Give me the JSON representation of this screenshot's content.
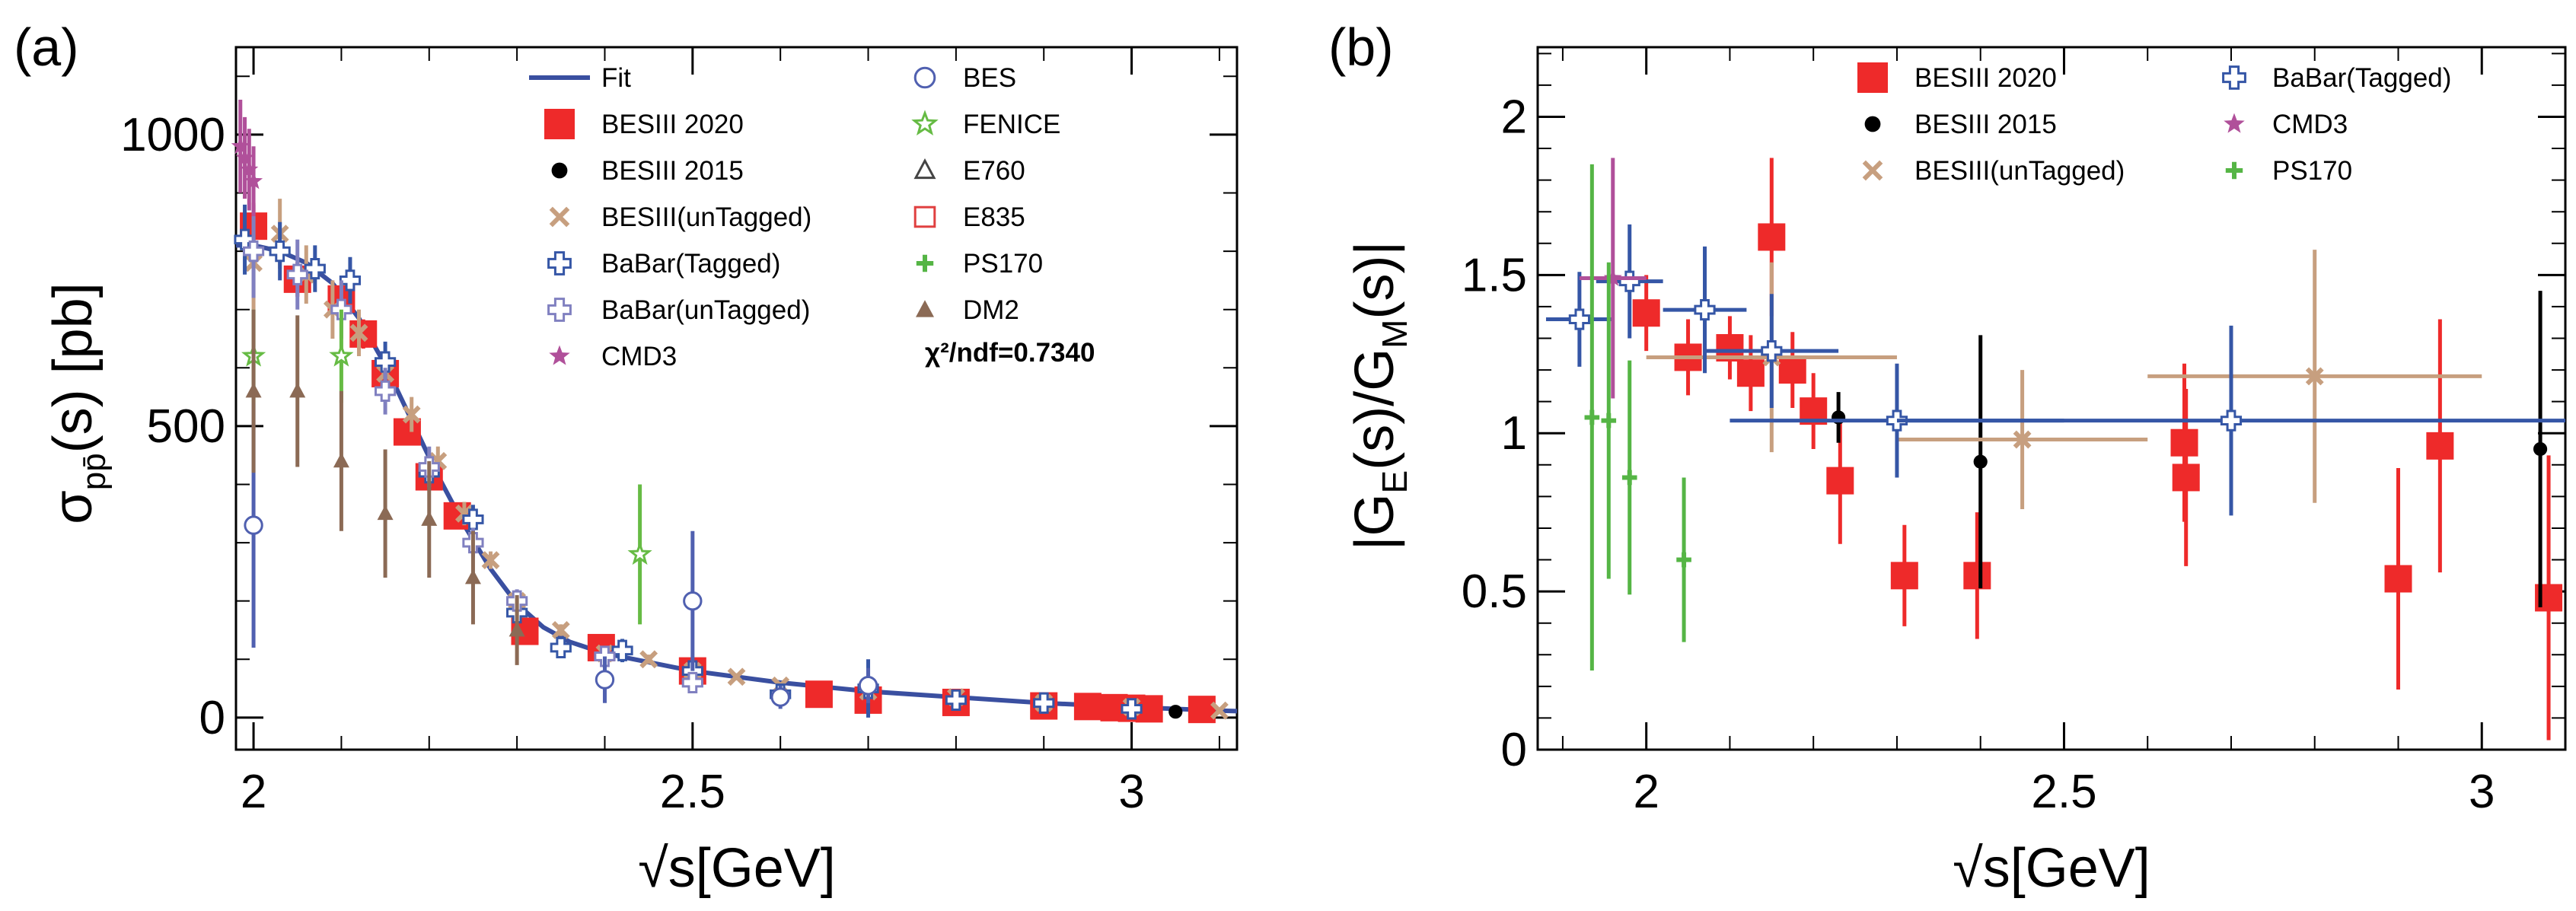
{
  "figure": {
    "panel_a_label": "(a)",
    "panel_b_label": "(b)",
    "colors": {
      "fit": "#3a4fa0",
      "besiii2020": "#ee2a2a",
      "besiii2015": "#000000",
      "besiii_untagged": "#c79f7f",
      "babar_tagged": "#3556a6",
      "babar_untagged": "#8080c0",
      "cmd3": "#b0509a",
      "bes": "#5060b0",
      "fenice": "#66bb44",
      "e760": "#444444",
      "e835": "#e04040",
      "ps170": "#55b545",
      "dm2": "#8b6a55"
    }
  },
  "chart_data": [
    {
      "id": "a",
      "type": "scatter",
      "title": "",
      "xlabel_prefix": "√",
      "xlabel": "s[GeV]",
      "ylabel_sigma": "σ",
      "ylabel_sub": "pp̄",
      "ylabel_rest": "(s) [pb]",
      "xlim": [
        1.98,
        3.12
      ],
      "ylim": [
        -55,
        1150
      ],
      "xticks": [
        2,
        2.5,
        3
      ],
      "xtick_labels": [
        "2",
        "2.5",
        "3"
      ],
      "yticks": [
        0,
        500,
        1000
      ],
      "ytick_labels": [
        "0",
        "500",
        "1000"
      ],
      "legend": {
        "placement": "top",
        "col1": [
          {
            "key": "fit",
            "label": "Fit",
            "marker": "line"
          },
          {
            "key": "besiii2020",
            "label": "BESIII 2020",
            "marker": "square"
          },
          {
            "key": "besiii2015",
            "label": "BESIII 2015",
            "marker": "circle"
          },
          {
            "key": "besiii_untagged",
            "label": "BESIII(unTagged)",
            "marker": "x"
          },
          {
            "key": "babar_tagged",
            "label": "BaBar(Tagged)",
            "marker": "opencross"
          },
          {
            "key": "babar_untagged",
            "label": "BaBar(unTagged)",
            "marker": "opencross"
          },
          {
            "key": "cmd3",
            "label": "CMD3",
            "marker": "star"
          }
        ],
        "col2": [
          {
            "key": "bes",
            "label": "BES",
            "marker": "opencircle"
          },
          {
            "key": "fenice",
            "label": "FENICE",
            "marker": "openstar"
          },
          {
            "key": "e760",
            "label": "E760",
            "marker": "opentriangle"
          },
          {
            "key": "e835",
            "label": "E835",
            "marker": "opensquare"
          },
          {
            "key": "ps170",
            "label": "PS170",
            "marker": "plus"
          },
          {
            "key": "dm2",
            "label": "DM2",
            "marker": "triangle"
          }
        ],
        "chi2_label": "χ²/ndf=0.7340"
      },
      "fit_curve": {
        "x": [
          1.98,
          2.0,
          2.03,
          2.06,
          2.09,
          2.12,
          2.15,
          2.18,
          2.21,
          2.24,
          2.27,
          2.3,
          2.33,
          2.36,
          2.4,
          2.45,
          2.5,
          2.6,
          2.7,
          2.8,
          2.9,
          3.0,
          3.1,
          3.12
        ],
        "y": [
          810,
          810,
          800,
          780,
          745,
          685,
          605,
          510,
          415,
          330,
          255,
          195,
          155,
          130,
          110,
          95,
          80,
          60,
          45,
          35,
          25,
          18,
          12,
          11
        ]
      },
      "series": [
        {
          "name": "BESIII 2020",
          "key": "besiii2020",
          "marker": "square",
          "x": [
            2.0,
            2.05,
            2.1,
            2.125,
            2.15,
            2.175,
            2.2,
            2.232,
            2.309,
            2.396,
            2.5,
            2.644,
            2.7,
            2.8,
            2.9,
            2.95,
            2.98,
            3.0,
            3.02,
            3.08
          ],
          "y": [
            843,
            752,
            718,
            658,
            590,
            490,
            413,
            346,
            148,
            120,
            80,
            40,
            30,
            26,
            20,
            19,
            17,
            16,
            15,
            14
          ],
          "err": [
            40,
            30,
            28,
            25,
            25,
            20,
            18,
            15,
            10,
            8,
            6,
            4,
            4,
            3,
            3,
            3,
            3,
            3,
            3,
            3
          ]
        },
        {
          "name": "BESIII 2015",
          "key": "besiii2015",
          "marker": "circle",
          "x": [
            3.05
          ],
          "y": [
            10
          ],
          "err": [
            3
          ]
        },
        {
          "name": "BESIII(unTagged)",
          "key": "besiii_untagged",
          "marker": "x",
          "x": [
            2.0,
            2.03,
            2.06,
            2.09,
            2.12,
            2.15,
            2.18,
            2.21,
            2.24,
            2.27,
            2.3,
            2.35,
            2.4,
            2.45,
            2.5,
            2.55,
            2.6,
            2.7,
            2.8,
            2.9,
            3.0,
            3.1
          ],
          "y": [
            780,
            830,
            760,
            700,
            660,
            590,
            520,
            440,
            350,
            270,
            200,
            150,
            110,
            100,
            80,
            70,
            55,
            45,
            35,
            25,
            18,
            12
          ],
          "err": [
            80,
            60,
            50,
            50,
            40,
            35,
            30,
            25,
            20,
            15,
            12,
            10,
            8,
            8,
            6,
            6,
            5,
            4,
            4,
            3,
            3,
            3
          ]
        },
        {
          "name": "BaBar(Tagged)",
          "key": "babar_tagged",
          "marker": "opencross",
          "x": [
            1.99,
            2.03,
            2.07,
            2.11,
            2.15,
            2.2,
            2.25,
            2.3,
            2.35,
            2.42,
            2.5,
            2.6,
            2.7,
            2.8,
            2.9,
            3.0
          ],
          "y": [
            820,
            800,
            770,
            750,
            610,
            420,
            340,
            180,
            120,
            115,
            80,
            40,
            50,
            30,
            25,
            15
          ],
          "err": [
            60,
            50,
            40,
            40,
            35,
            30,
            25,
            15,
            12,
            20,
            15,
            10,
            50,
            15,
            10,
            8
          ]
        },
        {
          "name": "BaBar(unTagged)",
          "key": "babar_untagged",
          "marker": "opencross",
          "x": [
            2.0,
            2.05,
            2.1,
            2.15,
            2.2,
            2.25,
            2.3,
            2.4,
            2.5
          ],
          "y": [
            800,
            760,
            700,
            560,
            430,
            300,
            200,
            105,
            60
          ],
          "err": [
            80,
            60,
            50,
            40,
            35,
            25,
            20,
            15,
            10
          ]
        },
        {
          "name": "CMD3",
          "key": "cmd3",
          "marker": "star",
          "x": [
            1.985,
            1.99,
            1.995,
            2.0
          ],
          "y": [
            980,
            960,
            940,
            920
          ],
          "err": [
            80,
            70,
            70,
            60
          ]
        },
        {
          "name": "BES",
          "key": "bes",
          "marker": "opencircle",
          "x": [
            2.0,
            2.4,
            2.5,
            2.6,
            2.7
          ],
          "y": [
            330,
            65,
            200,
            35,
            55
          ],
          "err": [
            210,
            40,
            120,
            20,
            30
          ]
        },
        {
          "name": "FENICE",
          "key": "fenice",
          "marker": "openstar",
          "x": [
            2.0,
            2.1,
            2.44
          ],
          "y": [
            620,
            620,
            280
          ],
          "err": [
            80,
            80,
            120
          ]
        },
        {
          "name": "DM2",
          "key": "dm2",
          "marker": "triangle",
          "x": [
            2.0,
            2.05,
            2.1,
            2.15,
            2.2,
            2.25,
            2.3
          ],
          "y": [
            560,
            560,
            440,
            350,
            340,
            240,
            150
          ],
          "err": [
            140,
            130,
            120,
            110,
            100,
            80,
            60
          ]
        }
      ]
    },
    {
      "id": "b",
      "type": "scatter",
      "title": "",
      "xlabel_prefix": "√",
      "xlabel": "s[GeV]",
      "ylabel": "|G_E(s)/G_M(s)|",
      "xlim": [
        1.87,
        3.1
      ],
      "ylim": [
        0,
        2.22
      ],
      "xticks": [
        2,
        2.5,
        3
      ],
      "xtick_labels": [
        "2",
        "2.5",
        "3"
      ],
      "yticks": [
        0,
        0.5,
        1,
        1.5,
        2
      ],
      "ytick_labels": [
        "0",
        "0.5",
        "1",
        "1.5",
        "2"
      ],
      "legend": {
        "placement": "top",
        "col1": [
          {
            "key": "besiii2020",
            "label": "BESIII 2020",
            "marker": "square"
          },
          {
            "key": "besiii2015",
            "label": "BESIII 2015",
            "marker": "circle"
          },
          {
            "key": "besiii_untagged",
            "label": "BESIII(unTagged)",
            "marker": "x"
          }
        ],
        "col2": [
          {
            "key": "babar_tagged",
            "label": "BaBar(Tagged)",
            "marker": "opencross"
          },
          {
            "key": "cmd3",
            "label": "CMD3",
            "marker": "star"
          },
          {
            "key": "ps170",
            "label": "PS170",
            "marker": "plus"
          }
        ]
      },
      "series": [
        {
          "name": "BESIII 2020",
          "key": "besiii2020",
          "marker": "square",
          "x": [
            2.0,
            2.05,
            2.1,
            2.125,
            2.15,
            2.175,
            2.2,
            2.232,
            2.309,
            2.396,
            2.644,
            2.646,
            2.9,
            2.95,
            3.08
          ],
          "y": [
            1.38,
            1.24,
            1.27,
            1.19,
            1.62,
            1.2,
            1.07,
            0.85,
            0.55,
            0.55,
            0.97,
            0.86,
            0.54,
            0.96,
            0.48
          ],
          "err": [
            0.12,
            0.12,
            0.1,
            0.12,
            0.25,
            0.12,
            0.12,
            0.2,
            0.16,
            0.2,
            0.25,
            0.28,
            0.35,
            0.4,
            0.45
          ],
          "xerr": [
            0,
            0,
            0,
            0,
            0,
            0,
            0,
            0,
            0,
            0,
            0,
            0,
            0,
            0,
            0
          ]
        },
        {
          "name": "BESIII 2015",
          "key": "besiii2015",
          "marker": "circle",
          "x": [
            2.23,
            2.4,
            3.07
          ],
          "y": [
            1.05,
            0.91,
            0.95
          ],
          "err": [
            0.08,
            0.4,
            0.5
          ],
          "xerr": [
            0,
            0,
            0
          ]
        },
        {
          "name": "BESIII(unTagged)",
          "key": "besiii_untagged",
          "marker": "x",
          "x": [
            2.15,
            2.45,
            2.8
          ],
          "y": [
            1.24,
            0.98,
            1.18
          ],
          "err": [
            0.3,
            0.22,
            0.4
          ],
          "xerr": [
            0.15,
            0.15,
            0.2
          ]
        },
        {
          "name": "BaBar(Tagged)",
          "key": "babar_tagged",
          "marker": "opencross",
          "x": [
            1.92,
            1.98,
            2.07,
            2.15,
            2.3,
            2.7
          ],
          "y": [
            1.36,
            1.48,
            1.39,
            1.26,
            1.04,
            1.04
          ],
          "err": [
            0.15,
            0.18,
            0.2,
            0.18,
            0.18,
            0.3
          ],
          "xerr": [
            0.04,
            0.04,
            0.05,
            0.08,
            0.2,
            0.4
          ]
        },
        {
          "name": "CMD3",
          "key": "cmd3",
          "marker": "star",
          "x": [
            1.96
          ],
          "y": [
            1.49
          ],
          "err": [
            0.38
          ],
          "xerr": [
            0.04
          ]
        },
        {
          "name": "PS170",
          "key": "ps170",
          "marker": "plus",
          "x": [
            1.935,
            1.955,
            1.98,
            2.045
          ],
          "y": [
            1.05,
            1.04,
            0.86,
            0.6
          ],
          "err": [
            0.8,
            0.5,
            0.37,
            0.26
          ],
          "xerr": [
            0,
            0,
            0,
            0
          ]
        }
      ]
    }
  ]
}
